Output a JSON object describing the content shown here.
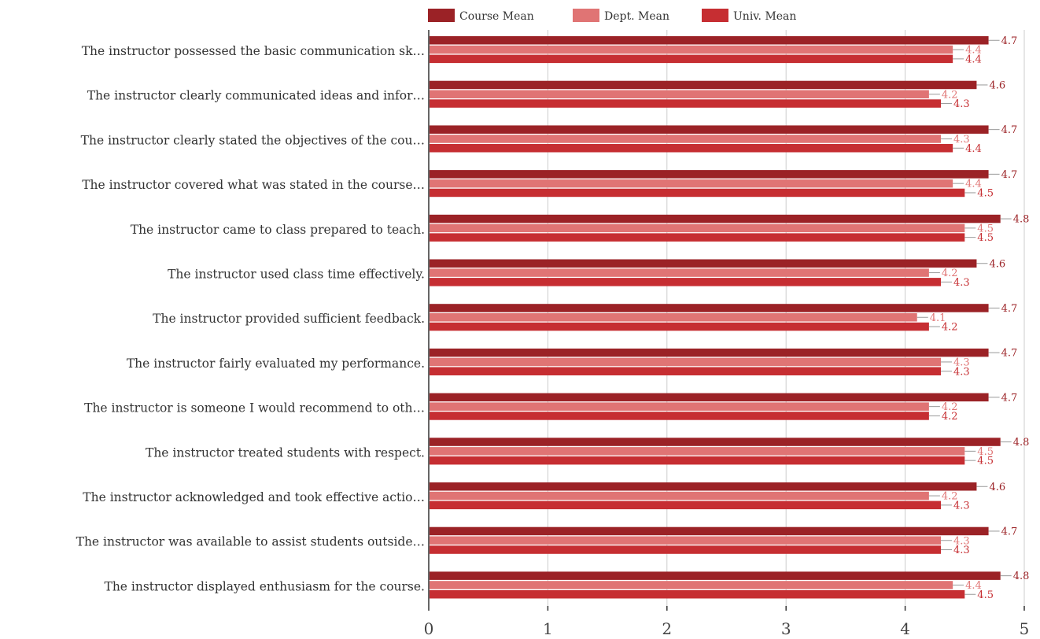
{
  "chart_data": {
    "type": "bar",
    "orientation": "horizontal",
    "categories": [
      "The instructor possessed the basic communication sk…",
      "The instructor clearly communicated ideas and infor…",
      "The instructor clearly stated the objectives of the cou…",
      "The instructor covered what was stated in the course…",
      "The instructor came to class prepared to teach.",
      "The instructor used class time effectively.",
      "The instructor provided sufficient feedback.",
      "The instructor fairly evaluated my performance.",
      "The instructor is someone I would recommend to oth…",
      "The instructor treated students with respect.",
      "The instructor acknowledged and took effective actio…",
      "The instructor was available to assist students outside…",
      "The instructor displayed enthusiasm for the course."
    ],
    "series": [
      {
        "name": "Course Mean",
        "color": "#9b2226",
        "label_color": "#9b2226",
        "values": [
          4.7,
          4.6,
          4.7,
          4.7,
          4.8,
          4.6,
          4.7,
          4.7,
          4.7,
          4.8,
          4.6,
          4.7,
          4.8
        ]
      },
      {
        "name": "Dept. Mean",
        "color": "#e07474",
        "label_color": "#e07474",
        "values": [
          4.4,
          4.2,
          4.3,
          4.4,
          4.5,
          4.2,
          4.1,
          4.3,
          4.2,
          4.5,
          4.2,
          4.3,
          4.4
        ]
      },
      {
        "name": "Univ. Mean",
        "color": "#c62e32",
        "label_color": "#c62e32",
        "values": [
          4.4,
          4.3,
          4.4,
          4.5,
          4.5,
          4.3,
          4.2,
          4.3,
          4.2,
          4.5,
          4.3,
          4.3,
          4.5
        ]
      }
    ],
    "x_ticks": [
      "0",
      "1",
      "2",
      "3",
      "4",
      "5"
    ],
    "xlim": [
      0,
      5
    ],
    "grid": true,
    "legend_position": "top",
    "data_labels": true
  }
}
